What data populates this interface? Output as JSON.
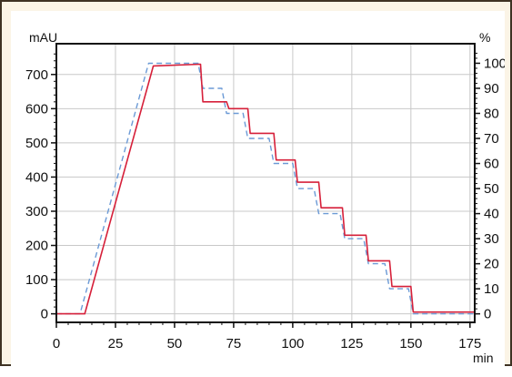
{
  "chart_data": {
    "type": "line",
    "xlabel": "min",
    "ylabel_left": "mAU",
    "ylabel_right": "%",
    "xlim": [
      0,
      177
    ],
    "ylim_left": [
      -25,
      790
    ],
    "ylim_right": [
      -3.4,
      107.8
    ],
    "grid": true,
    "x_ticks": [
      0,
      25,
      50,
      75,
      100,
      125,
      150,
      175
    ],
    "y_ticks_left": [
      0,
      100,
      200,
      300,
      400,
      500,
      600,
      700
    ],
    "y_ticks_right": [
      0,
      10,
      20,
      30,
      40,
      50,
      60,
      70,
      80,
      90,
      100
    ],
    "series": [
      {
        "axis": "left",
        "color": "#d6203a",
        "style": "solid",
        "x": [
          0,
          12,
          41,
          61,
          62,
          72,
          73,
          81,
          82,
          92,
          93,
          101,
          102,
          111,
          112,
          121,
          122,
          131,
          132,
          141,
          142,
          150,
          151,
          177
        ],
        "y": [
          0,
          0,
          725,
          730,
          620,
          620,
          600,
          600,
          528,
          528,
          450,
          450,
          385,
          385,
          310,
          310,
          230,
          230,
          155,
          155,
          80,
          80,
          5,
          5
        ]
      },
      {
        "axis": "right",
        "color": "#6b9ad6",
        "style": "dashed",
        "x": [
          0,
          10,
          39,
          60,
          62,
          70,
          72,
          79,
          81,
          90,
          92,
          100,
          102,
          109,
          111,
          120,
          122,
          130,
          132,
          139,
          141,
          149,
          151,
          177
        ],
        "y": [
          0,
          0,
          100,
          100,
          90,
          90,
          80,
          80,
          70,
          70,
          60,
          60,
          50,
          50,
          40,
          40,
          30,
          30,
          20,
          20,
          10,
          10,
          0,
          0
        ]
      }
    ]
  }
}
